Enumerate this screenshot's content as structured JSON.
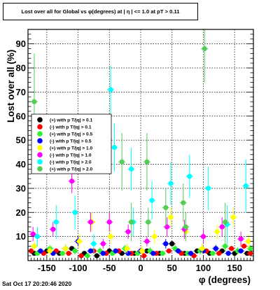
{
  "title": "Lost over all for Global vs φ(degrees) at | η | <= 1.0 at pT > 0.11",
  "footer": "Sat Oct 17 20:20:46 2020",
  "chart_data": {
    "type": "scatter",
    "xlabel": "φ (degrees)",
    "ylabel": "Lost over all (%)",
    "xlim": [
      -180,
      180
    ],
    "ylim": [
      0,
      96
    ],
    "xticks": [
      -150,
      -100,
      -50,
      0,
      50,
      100,
      150
    ],
    "yticks": [
      10,
      20,
      30,
      40,
      50,
      60,
      70,
      80,
      90
    ],
    "grid": true,
    "legend_position": "middle-left",
    "series": [
      {
        "name": "(+) with p T/|q| > 0.1",
        "color": "#000000",
        "x": [
          -170,
          -150,
          -130,
          -110,
          -100,
          -90,
          -70,
          -50,
          -30,
          -10,
          10,
          30,
          50,
          70,
          90,
          110,
          130,
          150,
          170
        ],
        "y": [
          3,
          4,
          3,
          5,
          8,
          3,
          2,
          4,
          3,
          3,
          4,
          3,
          7,
          3,
          4,
          3,
          4,
          3,
          3
        ],
        "err": [
          0.8,
          1,
          0.8,
          1,
          1.2,
          0.8,
          0.8,
          1,
          0.8,
          0.8,
          1,
          0.8,
          1.2,
          0.8,
          1,
          0.8,
          1,
          0.8,
          0.8
        ]
      },
      {
        "name": "(-) with p T/|q| > 0.1",
        "color": "#ff0000",
        "x": [
          -175,
          -155,
          -135,
          -115,
          -95,
          -75,
          -55,
          -35,
          -15,
          5,
          25,
          45,
          65,
          85,
          105,
          125,
          145,
          165,
          175
        ],
        "y": [
          4,
          3,
          4,
          3,
          2,
          4,
          3,
          4,
          3,
          2,
          3,
          4,
          3,
          2,
          4,
          3,
          5,
          6,
          3
        ],
        "err": [
          0.8,
          0.8,
          1,
          0.8,
          0.8,
          1,
          0.8,
          1,
          0.8,
          0.8,
          0.8,
          1,
          0.8,
          0.8,
          1,
          0.8,
          1,
          1,
          0.8
        ]
      },
      {
        "name": "(+) with p T/|q| > 0.5",
        "color": "#33ee33",
        "x": [
          -165,
          -145,
          -125,
          -105,
          -85,
          -65,
          -45,
          -25,
          -5,
          15,
          35,
          55,
          75,
          95,
          115,
          135,
          155,
          175
        ],
        "y": [
          3,
          5,
          3,
          4,
          2,
          4,
          3,
          5,
          3,
          4,
          3,
          5,
          3,
          4,
          3,
          6,
          4,
          5
        ],
        "err": [
          1,
          1.5,
          1,
          1.5,
          1,
          1.5,
          1,
          1.5,
          1,
          1.5,
          1,
          1.5,
          1,
          1.5,
          1,
          2,
          1.5,
          1.5
        ]
      },
      {
        "name": "(-) with p T/|q| > 0.5",
        "color": "#0000ff",
        "x": [
          -160,
          -140,
          -120,
          -100,
          -80,
          -60,
          -40,
          -20,
          0,
          20,
          40,
          60,
          80,
          100,
          120,
          140,
          160
        ],
        "y": [
          4,
          3,
          5,
          8,
          4,
          3,
          4,
          3,
          4,
          3,
          7,
          4,
          3,
          4,
          5,
          3,
          4
        ],
        "err": [
          1,
          1,
          1.5,
          2,
          1,
          1,
          1,
          1,
          1,
          1,
          2,
          1,
          1,
          1,
          1.5,
          1,
          1
        ]
      },
      {
        "name": "(+) with p T/|q| > 1.0",
        "color": "#ffff00",
        "x": [
          -170,
          -145,
          -120,
          -98,
          -78,
          -48,
          -22,
          2,
          22,
          48,
          72,
          98,
          122,
          148,
          172
        ],
        "y": [
          6,
          4,
          5,
          8,
          16,
          10,
          5,
          4,
          10,
          18,
          12,
          5,
          12,
          18,
          8
        ],
        "err": [
          2,
          2,
          2,
          3,
          4,
          3,
          2,
          2,
          3,
          4,
          3,
          2,
          3,
          4,
          3
        ]
      },
      {
        "name": "(-) with p T/|q| > 1.0",
        "color": "#ff00ff",
        "x": [
          -172,
          -140,
          -110,
          -80,
          -60,
          -50,
          -20,
          10,
          42,
          70,
          100,
          130,
          160
        ],
        "y": [
          11,
          13,
          33,
          16,
          7,
          16,
          12,
          8,
          14,
          13,
          10,
          14,
          9
        ],
        "err": [
          3,
          3,
          5,
          4,
          2,
          4,
          3,
          2,
          4,
          4,
          3,
          4,
          3
        ]
      },
      {
        "name": "(-) with p T/|q| > 2.0",
        "color": "#00ffff",
        "x": [
          -165,
          -135,
          -105,
          -75,
          -48,
          -42,
          -15,
          -12,
          18,
          48,
          78,
          108,
          138,
          168
        ],
        "y": [
          10,
          16,
          20,
          7,
          71,
          47,
          38,
          16,
          25,
          32,
          35,
          30,
          15,
          31
        ],
        "err": [
          4,
          7,
          7,
          4,
          10,
          10,
          9,
          6,
          8,
          9,
          9,
          9,
          8,
          11
        ]
      },
      {
        "name": "(+) with p T/|q| > 2.0",
        "color": "#55cc55",
        "x": [
          -170,
          -30,
          -15,
          10,
          12,
          40,
          68,
          72,
          102,
          135
        ],
        "y": [
          66,
          41,
          16,
          41,
          16,
          22,
          24,
          14,
          88,
          16
        ],
        "err": [
          20,
          12,
          8,
          12,
          6,
          8,
          8,
          6,
          14,
          8
        ]
      }
    ]
  }
}
